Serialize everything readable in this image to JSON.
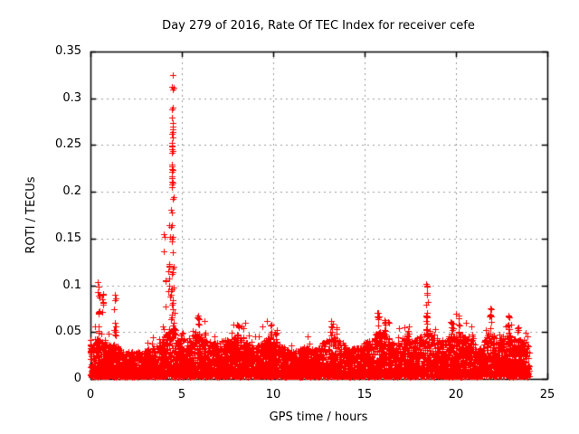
{
  "page": {
    "background": "#ffffff"
  },
  "style": {
    "marker_color": "#ff0000",
    "grid_color": "#9a9a9a",
    "axis_color": "#000000",
    "text_color": "#000000"
  },
  "chart_data": {
    "type": "scatter",
    "title": "Day 279 of 2016, Rate Of TEC Index for receiver cefe",
    "xlabel": "GPS time / hours",
    "ylabel": "ROTI / TECUs",
    "xlim": [
      0,
      25
    ],
    "ylim": [
      0,
      0.35
    ],
    "xticks": [
      0,
      5,
      10,
      15,
      20,
      25
    ],
    "xtick_labels": [
      "0",
      "5",
      "10",
      "15",
      "20",
      "25"
    ],
    "yticks": [
      0,
      0.05,
      0.1,
      0.15,
      0.2,
      0.25,
      0.3,
      0.35
    ],
    "ytick_labels": [
      "0",
      "0.05",
      "0.1",
      "0.15",
      "0.2",
      "0.25",
      "0.3",
      "0.35"
    ],
    "grid": true,
    "legend": "none",
    "marker": {
      "shape": "plus",
      "color": "#ff0000",
      "size": 7
    },
    "data_time_range": [
      0,
      24
    ],
    "baseline_band": {
      "y_min": 0.003,
      "top_envelope": [
        [
          0,
          0.041
        ],
        [
          0.4,
          0.044
        ],
        [
          0.6,
          0.04
        ],
        [
          1,
          0.038
        ],
        [
          1.4,
          0.036
        ],
        [
          1.8,
          0.029
        ],
        [
          2.4,
          0.028
        ],
        [
          3,
          0.031
        ],
        [
          3.5,
          0.034
        ],
        [
          3.9,
          0.042
        ],
        [
          4.2,
          0.05
        ],
        [
          4.5,
          0.058
        ],
        [
          4.8,
          0.046
        ],
        [
          5.2,
          0.04
        ],
        [
          5.7,
          0.05
        ],
        [
          6.1,
          0.046
        ],
        [
          6.6,
          0.038
        ],
        [
          7.1,
          0.041
        ],
        [
          7.7,
          0.044
        ],
        [
          8.2,
          0.047
        ],
        [
          8.7,
          0.037
        ],
        [
          9.2,
          0.036
        ],
        [
          9.8,
          0.047
        ],
        [
          10.2,
          0.041
        ],
        [
          10.7,
          0.032
        ],
        [
          11.2,
          0.03
        ],
        [
          11.7,
          0.033
        ],
        [
          12.2,
          0.031
        ],
        [
          12.8,
          0.04
        ],
        [
          13.2,
          0.047
        ],
        [
          13.6,
          0.041
        ],
        [
          14.2,
          0.033
        ],
        [
          14.8,
          0.036
        ],
        [
          15.3,
          0.041
        ],
        [
          15.8,
          0.051
        ],
        [
          16.2,
          0.047
        ],
        [
          16.7,
          0.036
        ],
        [
          17.2,
          0.044
        ],
        [
          17.7,
          0.04
        ],
        [
          18.1,
          0.046
        ],
        [
          18.45,
          0.054
        ],
        [
          18.9,
          0.038
        ],
        [
          19.4,
          0.042
        ],
        [
          19.9,
          0.049
        ],
        [
          20.35,
          0.046
        ],
        [
          20.8,
          0.044
        ],
        [
          21.3,
          0.031
        ],
        [
          21.85,
          0.05
        ],
        [
          22.3,
          0.042
        ],
        [
          22.85,
          0.049
        ],
        [
          23.3,
          0.04
        ],
        [
          23.7,
          0.042
        ],
        [
          24,
          0.036
        ]
      ]
    },
    "spike_columns": [
      [
        0.45,
        0.103,
        14
      ],
      [
        0.65,
        0.091,
        10
      ],
      [
        1.35,
        0.09,
        12
      ],
      [
        4.08,
        0.155,
        6
      ],
      [
        4.25,
        0.12,
        5
      ],
      [
        5.9,
        0.068,
        6
      ],
      [
        6.3,
        0.062,
        4
      ],
      [
        8.05,
        0.058,
        5
      ],
      [
        9.9,
        0.058,
        6
      ],
      [
        10.15,
        0.052,
        4
      ],
      [
        13.2,
        0.062,
        6
      ],
      [
        13.45,
        0.055,
        4
      ],
      [
        15.75,
        0.071,
        9
      ],
      [
        16.1,
        0.063,
        6
      ],
      [
        17.4,
        0.056,
        5
      ],
      [
        18.4,
        0.102,
        16
      ],
      [
        19.8,
        0.06,
        5
      ],
      [
        20.15,
        0.068,
        6
      ],
      [
        20.9,
        0.056,
        4
      ],
      [
        21.9,
        0.075,
        9
      ],
      [
        22.9,
        0.068,
        7
      ],
      [
        23.4,
        0.055,
        4
      ]
    ],
    "main_spike": {
      "x_center": 4.5,
      "peak": 0.325,
      "points": [
        [
          4.5,
          0.325
        ],
        [
          4.47,
          0.312
        ],
        [
          4.5,
          0.309
        ],
        [
          4.48,
          0.288
        ],
        [
          4.46,
          0.279
        ],
        [
          4.5,
          0.274
        ],
        [
          4.49,
          0.27
        ],
        [
          4.51,
          0.267
        ],
        [
          4.47,
          0.262
        ],
        [
          4.5,
          0.258
        ],
        [
          4.44,
          0.252
        ],
        [
          4.46,
          0.249
        ],
        [
          4.45,
          0.246
        ],
        [
          4.47,
          0.242
        ],
        [
          4.48,
          0.229
        ],
        [
          4.44,
          0.227
        ],
        [
          4.46,
          0.224
        ],
        [
          4.47,
          0.221
        ],
        [
          4.45,
          0.215
        ],
        [
          4.44,
          0.211
        ],
        [
          4.46,
          0.208
        ],
        [
          4.47,
          0.205
        ],
        [
          4.52,
          0.192
        ],
        [
          4.4,
          0.181
        ],
        [
          4.44,
          0.178
        ],
        [
          4.3,
          0.164
        ],
        [
          4.42,
          0.162
        ],
        [
          4.35,
          0.152
        ],
        [
          4.47,
          0.15
        ],
        [
          4.44,
          0.147
        ],
        [
          4.52,
          0.135
        ],
        [
          4.3,
          0.121
        ],
        [
          4.5,
          0.118
        ],
        [
          4.48,
          0.112
        ],
        [
          4.31,
          0.1
        ],
        [
          4.55,
          0.098
        ],
        [
          4.42,
          0.094
        ],
        [
          4.38,
          0.088
        ],
        [
          4.52,
          0.084
        ],
        [
          4.45,
          0.079
        ],
        [
          4.5,
          0.074
        ],
        [
          4.47,
          0.069
        ],
        [
          4.43,
          0.064
        ],
        [
          4.55,
          0.06
        ]
      ]
    }
  }
}
